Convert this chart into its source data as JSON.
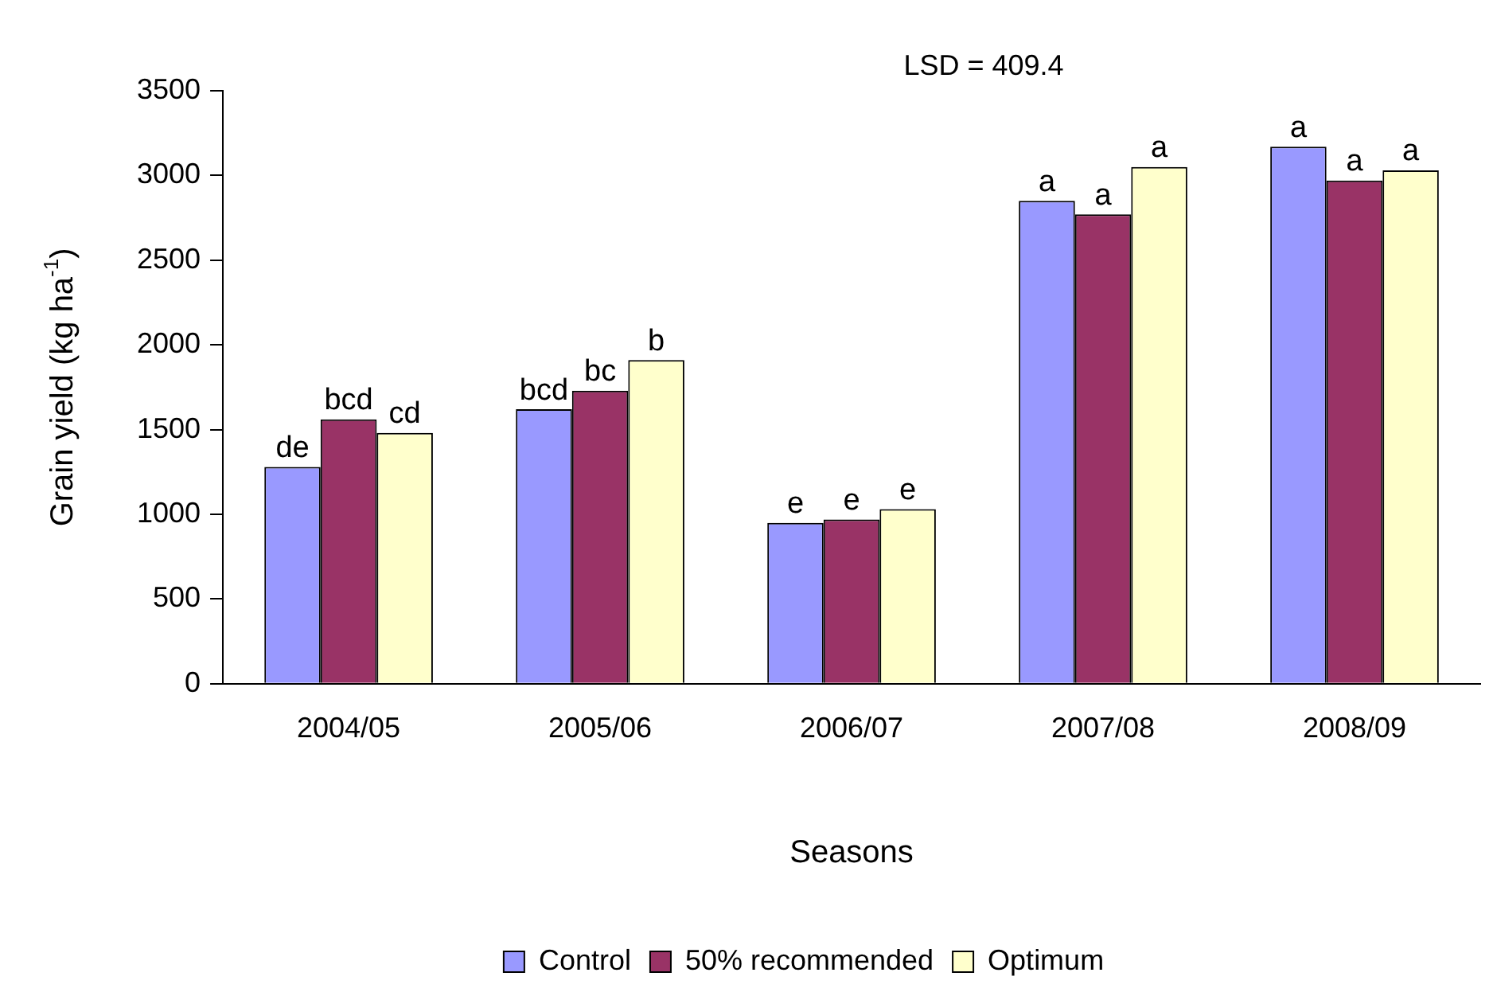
{
  "chart_data": {
    "type": "bar",
    "xlabel": "Seasons",
    "ylabel": "Grain yield (kg ha$^{-1}$)",
    "categories": [
      "2004/05",
      "2005/06",
      "2006/07",
      "2007/08",
      "2008/09"
    ],
    "series": [
      {
        "name": "Control",
        "color": "#9999ff",
        "values": [
          1280,
          1620,
          950,
          2850,
          3170
        ],
        "value_labels": [
          "de",
          "bcd",
          "e",
          "a",
          "a"
        ]
      },
      {
        "name": "50% recommended",
        "color": "#993366",
        "values": [
          1560,
          1730,
          970,
          2770,
          2970
        ],
        "value_labels": [
          "bcd",
          "bc",
          "e",
          "a",
          "a"
        ]
      },
      {
        "name": "Optimum",
        "color": "#ffffcc",
        "values": [
          1480,
          1910,
          1030,
          3050,
          3030
        ],
        "value_labels": [
          "cd",
          "b",
          "e",
          "a",
          "a"
        ]
      }
    ],
    "ylim": [
      0,
      3500
    ],
    "yticks": [
      0,
      500,
      1000,
      1500,
      2000,
      2500,
      3000,
      3500
    ],
    "grid": false,
    "legend": "bottom",
    "annotations": [
      "LSD = 409.4"
    ]
  }
}
